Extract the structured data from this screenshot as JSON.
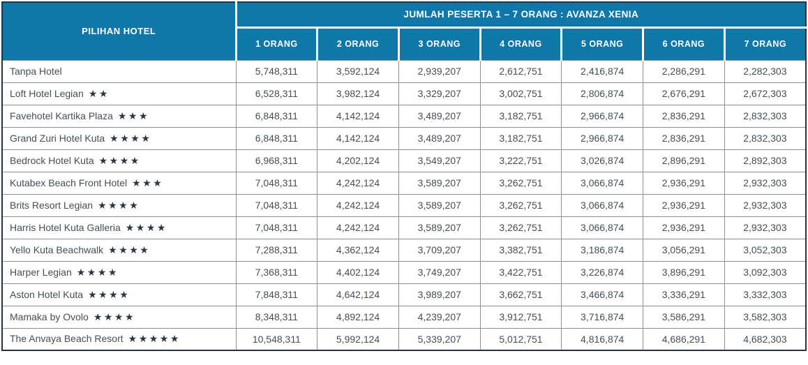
{
  "colors": {
    "header_background": "#1078A9",
    "header_text": "#FFFFFF",
    "outer_border": "#26343F",
    "grid_line": "#8F8F8F",
    "body_text": "#454E56"
  },
  "table": {
    "hotel_col_header": "PILIHAN HOTEL",
    "group_header": "JUMLAH PESERTA 1 – 7 ORANG : AVANZA XENIA",
    "col_headers": [
      "1 ORANG",
      "2 ORANG",
      "3 ORANG",
      "4 ORANG",
      "5 ORANG",
      "6 ORANG",
      "7 ORANG"
    ],
    "rows": [
      {
        "hotel": "Tanpa Hotel",
        "stars": "",
        "prices": [
          "5,748,311",
          "3,592,124",
          "2,939,207",
          "2,612,751",
          "2,416,874",
          "2,286,291",
          "2,282,303"
        ]
      },
      {
        "hotel": "Loft Hotel Legian",
        "stars": "★★",
        "prices": [
          "6,528,311",
          "3,982,124",
          "3,329,207",
          "3,002,751",
          "2,806,874",
          "2,676,291",
          "2,672,303"
        ]
      },
      {
        "hotel": "Favehotel Kartika Plaza",
        "stars": "★★★",
        "prices": [
          "6,848,311",
          "4,142,124",
          "3,489,207",
          "3,182,751",
          "2,966,874",
          "2,836,291",
          "2,832,303"
        ]
      },
      {
        "hotel": "Grand Zuri Hotel Kuta",
        "stars": "★★★★",
        "prices": [
          "6,848,311",
          "4,142,124",
          "3,489,207",
          "3,182,751",
          "2,966,874",
          "2,836,291",
          "2,832,303"
        ]
      },
      {
        "hotel": "Bedrock Hotel Kuta",
        "stars": "★★★★",
        "prices": [
          "6,968,311",
          "4,202,124",
          "3,549,207",
          "3,222,751",
          "3,026,874",
          "2,896,291",
          "2,892,303"
        ]
      },
      {
        "hotel": "Kutabex Beach Front Hotel",
        "stars": "★★★",
        "prices": [
          "7,048,311",
          "4,242,124",
          "3,589,207",
          "3,262,751",
          "3,066,874",
          "2,936,291",
          "2,932,303"
        ]
      },
      {
        "hotel": "Brits Resort Legian",
        "stars": "★★★★",
        "prices": [
          "7,048,311",
          "4,242,124",
          "3,589,207",
          "3,262,751",
          "3,066,874",
          "2,936,291",
          "2,932,303"
        ]
      },
      {
        "hotel": "Harris Hotel Kuta Galleria",
        "stars": "★★★★",
        "prices": [
          "7,048,311",
          "4,242,124",
          "3,589,207",
          "3,262,751",
          "3,066,874",
          "2,936,291",
          "2,932,303"
        ]
      },
      {
        "hotel": "Yello Kuta Beachwalk",
        "stars": "★★★★",
        "prices": [
          "7,288,311",
          "4,362,124",
          "3,709,207",
          "3,382,751",
          "3,186,874",
          "3,056,291",
          "3,052,303"
        ]
      },
      {
        "hotel": "Harper Legian",
        "stars": "★★★★",
        "prices": [
          "7,368,311",
          "4,402,124",
          "3,749,207",
          "3,422,751",
          "3,226,874",
          "3,896,291",
          "3,092,303"
        ]
      },
      {
        "hotel": "Aston Hotel Kuta",
        "stars": "★★★★",
        "prices": [
          "7,848,311",
          "4,642,124",
          "3,989,207",
          "3,662,751",
          "3,466,874",
          "3,336,291",
          "3,332,303"
        ]
      },
      {
        "hotel": "Mamaka by Ovolo",
        "stars": "★★★★",
        "prices": [
          "8,348,311",
          "4,892,124",
          "4,239,207",
          "3,912,751",
          "3,716,874",
          "3,586,291",
          "3,582,303"
        ]
      },
      {
        "hotel": "The Anvaya Beach Resort",
        "stars": "★★★★★",
        "prices": [
          "10,548,311",
          "5,992,124",
          "5,339,207",
          "5,012,751",
          "4,816,874",
          "4,686,291",
          "4,682,303"
        ]
      }
    ]
  }
}
